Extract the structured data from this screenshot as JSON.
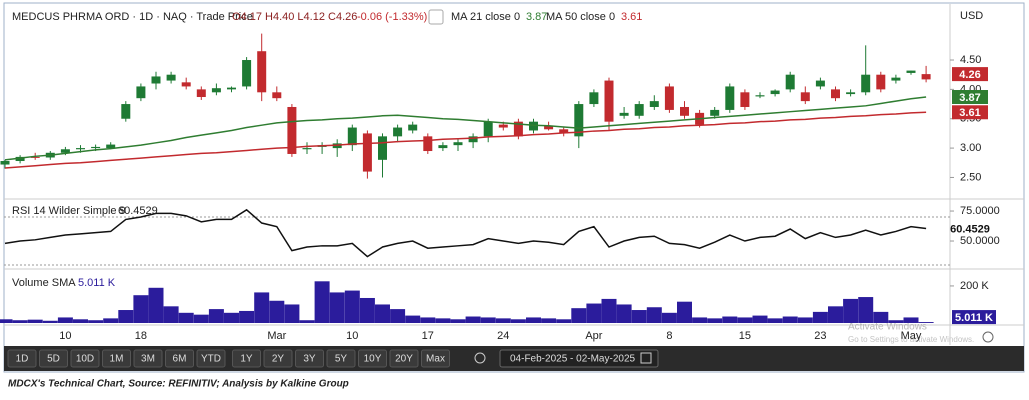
{
  "chart_data": [
    {
      "type": "candlestick",
      "title": "MEDCUS PHRMA ORD · 1D · NAQ · Trade Price",
      "ohlc_label": "O4.17 H4.40 L4.12 C4.26",
      "change_label": "-0.06 (-1.33%)",
      "currency": "USD",
      "categories": [
        null,
        null,
        null,
        null,
        "10",
        null,
        null,
        null,
        null,
        "18",
        null,
        null,
        null,
        null,
        null,
        null,
        null,
        null,
        "Mar",
        null,
        null,
        null,
        null,
        "10",
        null,
        null,
        null,
        null,
        "17",
        null,
        null,
        null,
        null,
        "24",
        null,
        null,
        null,
        null,
        null,
        "Apr",
        null,
        null,
        null,
        null,
        "8",
        null,
        null,
        null,
        null,
        "15",
        null,
        null,
        null,
        null,
        "23",
        null,
        null,
        null,
        null,
        null,
        "May",
        null
      ],
      "open": [
        2.72,
        2.78,
        2.85,
        2.84,
        2.92,
        2.98,
        3.0,
        3.0,
        3.5,
        3.85,
        4.1,
        4.15,
        4.12,
        4.0,
        3.95,
        4.0,
        4.05,
        4.65,
        3.95,
        3.7,
        2.98,
        3.02,
        3.0,
        3.05,
        3.25,
        2.8,
        3.2,
        3.3,
        3.2,
        3.0,
        3.05,
        3.1,
        3.2,
        3.4,
        3.45,
        3.3,
        3.38,
        3.32,
        3.2,
        3.75,
        4.15,
        3.55,
        3.55,
        3.7,
        4.05,
        3.7,
        3.6,
        3.55,
        3.65,
        3.95,
        3.88,
        3.92,
        4.0,
        3.95,
        4.05,
        4.0,
        3.92,
        3.95,
        4.25,
        4.15,
        4.28,
        4.17
      ],
      "high": [
        2.8,
        2.88,
        2.92,
        2.95,
        3.02,
        3.05,
        3.06,
        3.1,
        3.8,
        4.1,
        4.3,
        4.3,
        4.2,
        4.05,
        4.1,
        4.05,
        4.55,
        4.95,
        4.05,
        3.75,
        3.1,
        3.1,
        3.15,
        3.4,
        3.3,
        3.25,
        3.4,
        3.45,
        3.25,
        3.1,
        3.15,
        3.25,
        3.5,
        3.45,
        3.5,
        3.5,
        3.45,
        3.35,
        3.8,
        4.0,
        4.2,
        3.7,
        3.8,
        3.9,
        4.1,
        3.8,
        3.65,
        3.7,
        4.1,
        4.0,
        3.95,
        4.0,
        4.3,
        4.05,
        4.2,
        4.05,
        4.0,
        4.75,
        4.3,
        4.25,
        4.32,
        4.4
      ],
      "low": [
        2.65,
        2.74,
        2.8,
        2.8,
        2.88,
        2.92,
        2.95,
        2.98,
        3.45,
        3.8,
        4.0,
        4.1,
        4.0,
        3.82,
        3.9,
        3.95,
        4.0,
        3.8,
        3.8,
        2.85,
        2.9,
        2.9,
        2.85,
        2.95,
        2.48,
        2.5,
        3.1,
        3.25,
        2.9,
        2.95,
        2.95,
        3.0,
        3.1,
        3.3,
        3.15,
        3.25,
        3.3,
        3.2,
        3.0,
        3.7,
        3.3,
        3.5,
        3.5,
        3.65,
        3.6,
        3.5,
        3.35,
        3.5,
        3.6,
        3.65,
        3.85,
        3.88,
        3.95,
        3.75,
        4.0,
        3.8,
        3.88,
        3.9,
        3.95,
        4.1,
        4.25,
        4.12
      ],
      "close": [
        2.78,
        2.85,
        2.84,
        2.92,
        2.98,
        3.0,
        3.02,
        3.06,
        3.75,
        4.05,
        4.22,
        4.25,
        4.05,
        3.87,
        4.02,
        4.03,
        4.5,
        3.95,
        3.85,
        2.9,
        3.0,
        3.05,
        3.08,
        3.35,
        2.6,
        3.2,
        3.35,
        3.4,
        2.95,
        3.05,
        3.1,
        3.2,
        3.45,
        3.35,
        3.2,
        3.45,
        3.32,
        3.25,
        3.75,
        3.95,
        3.45,
        3.6,
        3.75,
        3.8,
        3.65,
        3.55,
        3.4,
        3.65,
        4.05,
        3.7,
        3.9,
        3.98,
        4.25,
        3.8,
        4.15,
        3.85,
        3.95,
        4.25,
        4.0,
        4.2,
        4.32,
        4.26
      ],
      "up_color": "#1e7a34",
      "down_color": "#c22a2e",
      "series": [
        {
          "name": "MA 21 close 0",
          "color": "#2f7d31",
          "values": [
            2.8,
            2.83,
            2.86,
            2.88,
            2.91,
            2.94,
            2.97,
            2.99,
            3.02,
            3.05,
            3.09,
            3.13,
            3.18,
            3.22,
            3.26,
            3.3,
            3.35,
            3.39,
            3.43,
            3.45,
            3.47,
            3.48,
            3.5,
            3.51,
            3.53,
            3.55,
            3.56,
            3.54,
            3.52,
            3.5,
            3.49,
            3.47,
            3.45,
            3.43,
            3.41,
            3.39,
            3.38,
            3.36,
            3.34,
            3.36,
            3.38,
            3.4,
            3.42,
            3.44,
            3.46,
            3.48,
            3.5,
            3.52,
            3.54,
            3.56,
            3.58,
            3.6,
            3.62,
            3.64,
            3.66,
            3.68,
            3.7,
            3.72,
            3.76,
            3.8,
            3.84,
            3.87
          ]
        },
        {
          "name": "MA 50 close 0",
          "color": "#c22a2e",
          "values": [
            2.66,
            2.68,
            2.7,
            2.72,
            2.74,
            2.75,
            2.77,
            2.79,
            2.81,
            2.83,
            2.85,
            2.87,
            2.89,
            2.91,
            2.92,
            2.94,
            2.96,
            2.98,
            3.0,
            3.01,
            3.03,
            3.04,
            3.05,
            3.07,
            3.08,
            3.09,
            3.11,
            3.12,
            3.13,
            3.15,
            3.16,
            3.17,
            3.19,
            3.2,
            3.21,
            3.23,
            3.24,
            3.26,
            3.27,
            3.29,
            3.3,
            3.32,
            3.33,
            3.35,
            3.36,
            3.38,
            3.39,
            3.4,
            3.42,
            3.43,
            3.45,
            3.46,
            3.48,
            3.49,
            3.51,
            3.52,
            3.54,
            3.55,
            3.57,
            3.58,
            3.6,
            3.61
          ]
        }
      ],
      "ylim": [
        2.15,
        5.42
      ],
      "yticks": [
        {
          "value": 2.5,
          "label": "2.50"
        },
        {
          "value": 3,
          "label": "3.00"
        },
        {
          "value": 3.5,
          "label": "3.50"
        },
        {
          "value": 4,
          "label": "4.00"
        },
        {
          "value": 4.5,
          "label": "4.50"
        }
      ]
    },
    {
      "type": "line",
      "title": "RSI 14 Wilder Simple 9",
      "color": "#111111",
      "values": [
        48,
        50,
        51,
        53,
        55,
        56,
        57,
        58,
        68,
        70,
        73,
        73,
        71,
        66,
        68,
        68,
        76,
        65,
        62,
        42,
        45,
        46,
        46,
        48,
        37,
        45,
        48,
        50,
        44,
        45,
        46,
        47,
        52,
        50,
        48,
        50,
        49,
        47,
        58,
        62,
        45,
        50,
        53,
        54,
        48,
        47,
        44,
        49,
        55,
        50,
        53,
        54,
        60,
        52,
        57,
        53,
        55,
        59,
        55,
        58,
        62,
        60.4529
      ],
      "bands": [
        70,
        30
      ],
      "ylim": [
        27.5,
        84.2
      ],
      "yticks": [
        {
          "value": 50,
          "label": "50.0000"
        },
        {
          "value": 75,
          "label": "75.0000"
        }
      ]
    },
    {
      "type": "bar",
      "title": "Volume SMA",
      "color": "#2b1c9c",
      "current_label": "5.011 K",
      "values": [
        20000,
        15000,
        18000,
        12000,
        30000,
        20000,
        15000,
        25000,
        70000,
        150000,
        190000,
        90000,
        55000,
        45000,
        75000,
        55000,
        65000,
        165000,
        120000,
        100000,
        15000,
        225000,
        165000,
        175000,
        135000,
        100000,
        75000,
        40000,
        30000,
        25000,
        20000,
        35000,
        30000,
        25000,
        20000,
        30000,
        25000,
        20000,
        80000,
        105000,
        130000,
        100000,
        70000,
        85000,
        55000,
        115000,
        30000,
        25000,
        35000,
        30000,
        40000,
        25000,
        35000,
        30000,
        60000,
        90000,
        130000,
        140000,
        60000,
        15000,
        30000,
        5011
      ],
      "ylim": [
        0,
        286000
      ],
      "yticks": [
        {
          "value": 200000,
          "label": "200 K"
        }
      ]
    }
  ],
  "toolbar": {
    "ranges": [
      "1D",
      "5D",
      "10D",
      "1M",
      "3M",
      "6M",
      "YTD",
      "1Y",
      "2Y",
      "3Y",
      "5Y",
      "10Y",
      "20Y",
      "Max"
    ],
    "date_range": "04-Feb-2025 - 02-May-2025"
  },
  "watermark": {
    "line1": "Activate Windows",
    "line2": "Go to Settings to activate Windows."
  },
  "caption": "MDCX's Technical Chart, Source: REFINITIV; Analysis by Kalkine Group"
}
